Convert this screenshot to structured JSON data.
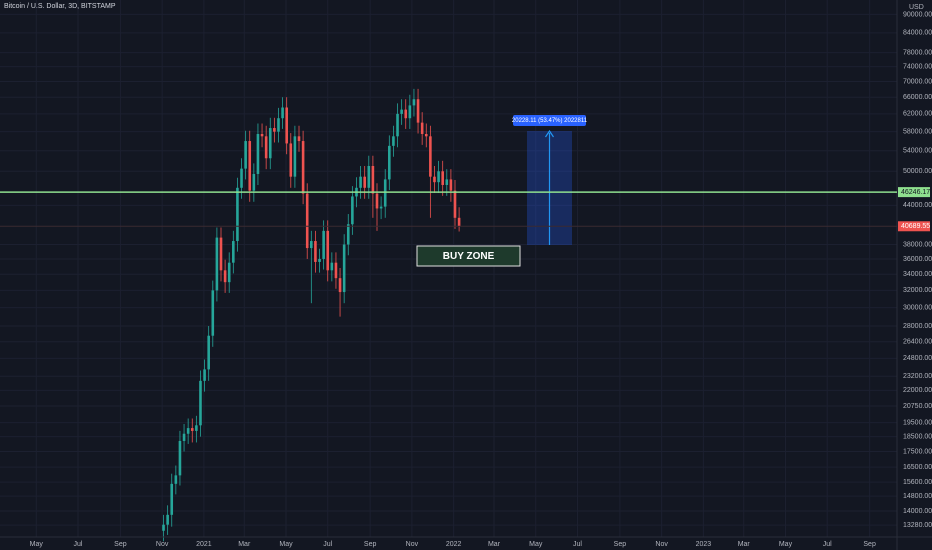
{
  "chart_data": {
    "type": "candlestick",
    "title": "Bitcoin / U.S. Dollar, 3D, BITSTAMP",
    "currency": "USD",
    "log_scale": true,
    "grid": true,
    "up_color": "#26a69a",
    "down_color": "#ef5350",
    "xlim": [
      0,
      1311
    ],
    "xticks": [
      {
        "value": 53,
        "label": "May"
      },
      {
        "value": 114,
        "label": "Jul"
      },
      {
        "value": 176,
        "label": "Sep"
      },
      {
        "value": 237,
        "label": "Nov"
      },
      {
        "value": 298,
        "label": "2021"
      },
      {
        "value": 357,
        "label": "Mar"
      },
      {
        "value": 418,
        "label": "May"
      },
      {
        "value": 479,
        "label": "Jul"
      },
      {
        "value": 541,
        "label": "Sep"
      },
      {
        "value": 602,
        "label": "Nov"
      },
      {
        "value": 663,
        "label": "2022"
      },
      {
        "value": 722,
        "label": "Mar"
      },
      {
        "value": 783,
        "label": "May"
      },
      {
        "value": 844,
        "label": "Jul"
      },
      {
        "value": 906,
        "label": "Sep"
      },
      {
        "value": 967,
        "label": "Nov"
      },
      {
        "value": 1028,
        "label": "2023"
      },
      {
        "value": 1087,
        "label": "Mar"
      },
      {
        "value": 1148,
        "label": "May"
      },
      {
        "value": 1209,
        "label": "Jul"
      },
      {
        "value": 1271,
        "label": "Sep"
      }
    ],
    "ylim": [
      12700,
      95000
    ],
    "yticks": [
      {
        "value": 90000,
        "label": "90000.00"
      },
      {
        "value": 84000,
        "label": "84000.00"
      },
      {
        "value": 78000,
        "label": "78000.00"
      },
      {
        "value": 74000,
        "label": "74000.00"
      },
      {
        "value": 70000,
        "label": "70000.00"
      },
      {
        "value": 66000,
        "label": "66000.00"
      },
      {
        "value": 62000,
        "label": "62000.00"
      },
      {
        "value": 58000,
        "label": "58000.00"
      },
      {
        "value": 54000,
        "label": "54000.00"
      },
      {
        "value": 50000,
        "label": "50000.00"
      },
      {
        "value": 44000,
        "label": "44000.00"
      },
      {
        "value": 38000,
        "label": "38000.00"
      },
      {
        "value": 36000,
        "label": "36000.00"
      },
      {
        "value": 34000,
        "label": "34000.00"
      },
      {
        "value": 32000,
        "label": "32000.00"
      },
      {
        "value": 30000,
        "label": "30000.00"
      },
      {
        "value": 28000,
        "label": "28000.00"
      },
      {
        "value": 26400,
        "label": "26400.00"
      },
      {
        "value": 24800,
        "label": "24800.00"
      },
      {
        "value": 23200,
        "label": "23200.00"
      },
      {
        "value": 22000,
        "label": "22000.00"
      },
      {
        "value": 20750,
        "label": "20750.00"
      },
      {
        "value": 19500,
        "label": "19500.00"
      },
      {
        "value": 18500,
        "label": "18500.00"
      },
      {
        "value": 17500,
        "label": "17500.00"
      },
      {
        "value": 16500,
        "label": "16500.00"
      },
      {
        "value": 15600,
        "label": "15600.00"
      },
      {
        "value": 14800,
        "label": "14800.00"
      },
      {
        "value": 14000,
        "label": "14000.00"
      },
      {
        "value": 13280,
        "label": "13280.00"
      }
    ],
    "x": [
      239,
      245,
      251,
      257,
      263,
      269,
      275,
      281,
      287,
      293,
      299,
      305,
      311,
      317,
      323,
      329,
      335,
      341,
      347,
      353,
      359,
      365,
      371,
      377,
      383,
      389,
      395,
      401,
      407,
      413,
      419,
      425,
      431,
      437,
      443,
      449,
      455,
      461,
      467,
      473,
      479,
      485,
      491,
      497,
      503,
      509,
      515,
      521,
      527,
      533,
      539,
      545,
      551,
      557,
      563,
      569,
      575,
      581,
      587,
      593,
      599,
      605,
      611,
      617,
      623,
      629,
      635,
      641,
      647,
      653,
      659,
      665,
      671
    ],
    "open": [
      13000,
      13300,
      13800,
      15500,
      16000,
      18200,
      18700,
      19100,
      18900,
      19300,
      22800,
      23800,
      27000,
      32000,
      39000,
      34500,
      33000,
      35500,
      38500,
      47000,
      50500,
      56000,
      46500,
      49500,
      57500,
      57000,
      52500,
      58800,
      58000,
      61000,
      63500,
      55500,
      49000,
      57000,
      56000,
      46000,
      37500,
      38500,
      35600,
      36000,
      40000,
      34500,
      35500,
      33500,
      31800,
      38000,
      41000,
      45500,
      47000,
      49000,
      47000,
      51000,
      46000,
      43500,
      43800,
      48500,
      55000,
      57000,
      62000,
      63000,
      61000,
      64000,
      65500,
      60000,
      57500,
      57000,
      49000,
      48000,
      50000,
      47500,
      48500,
      46500,
      42000
    ],
    "high": [
      13800,
      14300,
      16100,
      16600,
      18900,
      19400,
      19800,
      19800,
      20000,
      23700,
      24700,
      28000,
      33200,
      40500,
      40500,
      35900,
      36900,
      40000,
      48800,
      52500,
      58200,
      58200,
      51500,
      59800,
      59800,
      59300,
      61100,
      61100,
      63400,
      66000,
      66000,
      57700,
      59300,
      59300,
      58200,
      47800,
      40000,
      40000,
      37400,
      41600,
      41600,
      36900,
      36900,
      34800,
      39500,
      42600,
      47300,
      48900,
      51000,
      51000,
      53000,
      53000,
      47800,
      45500,
      50400,
      57200,
      59300,
      64500,
      65500,
      65500,
      66600,
      68100,
      68100,
      62400,
      59800,
      59300,
      51000,
      52000,
      52000,
      50400,
      50400,
      48400,
      43700
    ],
    "low": [
      12500,
      12800,
      13200,
      14900,
      15400,
      17500,
      18000,
      18100,
      18100,
      18500,
      21900,
      22800,
      25900,
      30700,
      33100,
      31700,
      31700,
      34100,
      37000,
      45100,
      48500,
      44600,
      44600,
      47500,
      54700,
      50400,
      50400,
      55700,
      55700,
      58600,
      53300,
      47000,
      47000,
      53800,
      44200,
      36000,
      30500,
      34200,
      34200,
      34600,
      33100,
      33100,
      32200,
      29000,
      30500,
      36500,
      39400,
      43700,
      45100,
      45100,
      45100,
      42000,
      40000,
      41800,
      42000,
      46600,
      52800,
      54700,
      59500,
      58600,
      58600,
      61400,
      57600,
      55200,
      54700,
      42000,
      46100,
      46100,
      45600,
      45600,
      44600,
      40300,
      39900
    ],
    "close": [
      13300,
      13800,
      15500,
      16000,
      18200,
      18700,
      19100,
      18900,
      19300,
      22800,
      23800,
      27000,
      32000,
      39000,
      34500,
      33000,
      35500,
      38500,
      47000,
      50500,
      56000,
      46500,
      49500,
      57500,
      57000,
      52500,
      58800,
      58000,
      61000,
      63500,
      55500,
      49000,
      57000,
      56000,
      46000,
      37500,
      38500,
      35600,
      36000,
      40000,
      34500,
      35500,
      33500,
      31800,
      38000,
      41000,
      45500,
      47000,
      49000,
      47000,
      51000,
      46000,
      43500,
      43800,
      48500,
      55000,
      57000,
      62000,
      63000,
      61000,
      64000,
      65500,
      60000,
      57500,
      57000,
      49000,
      48000,
      50000,
      47500,
      48500,
      46500,
      42000,
      40689.55
    ],
    "levels": [
      {
        "value": 46246.17,
        "color": "#8fe08f"
      }
    ],
    "annotations": {
      "measure": "20228.11 (53.47%) 2022811",
      "zone": "BUY ZONE"
    }
  }
}
